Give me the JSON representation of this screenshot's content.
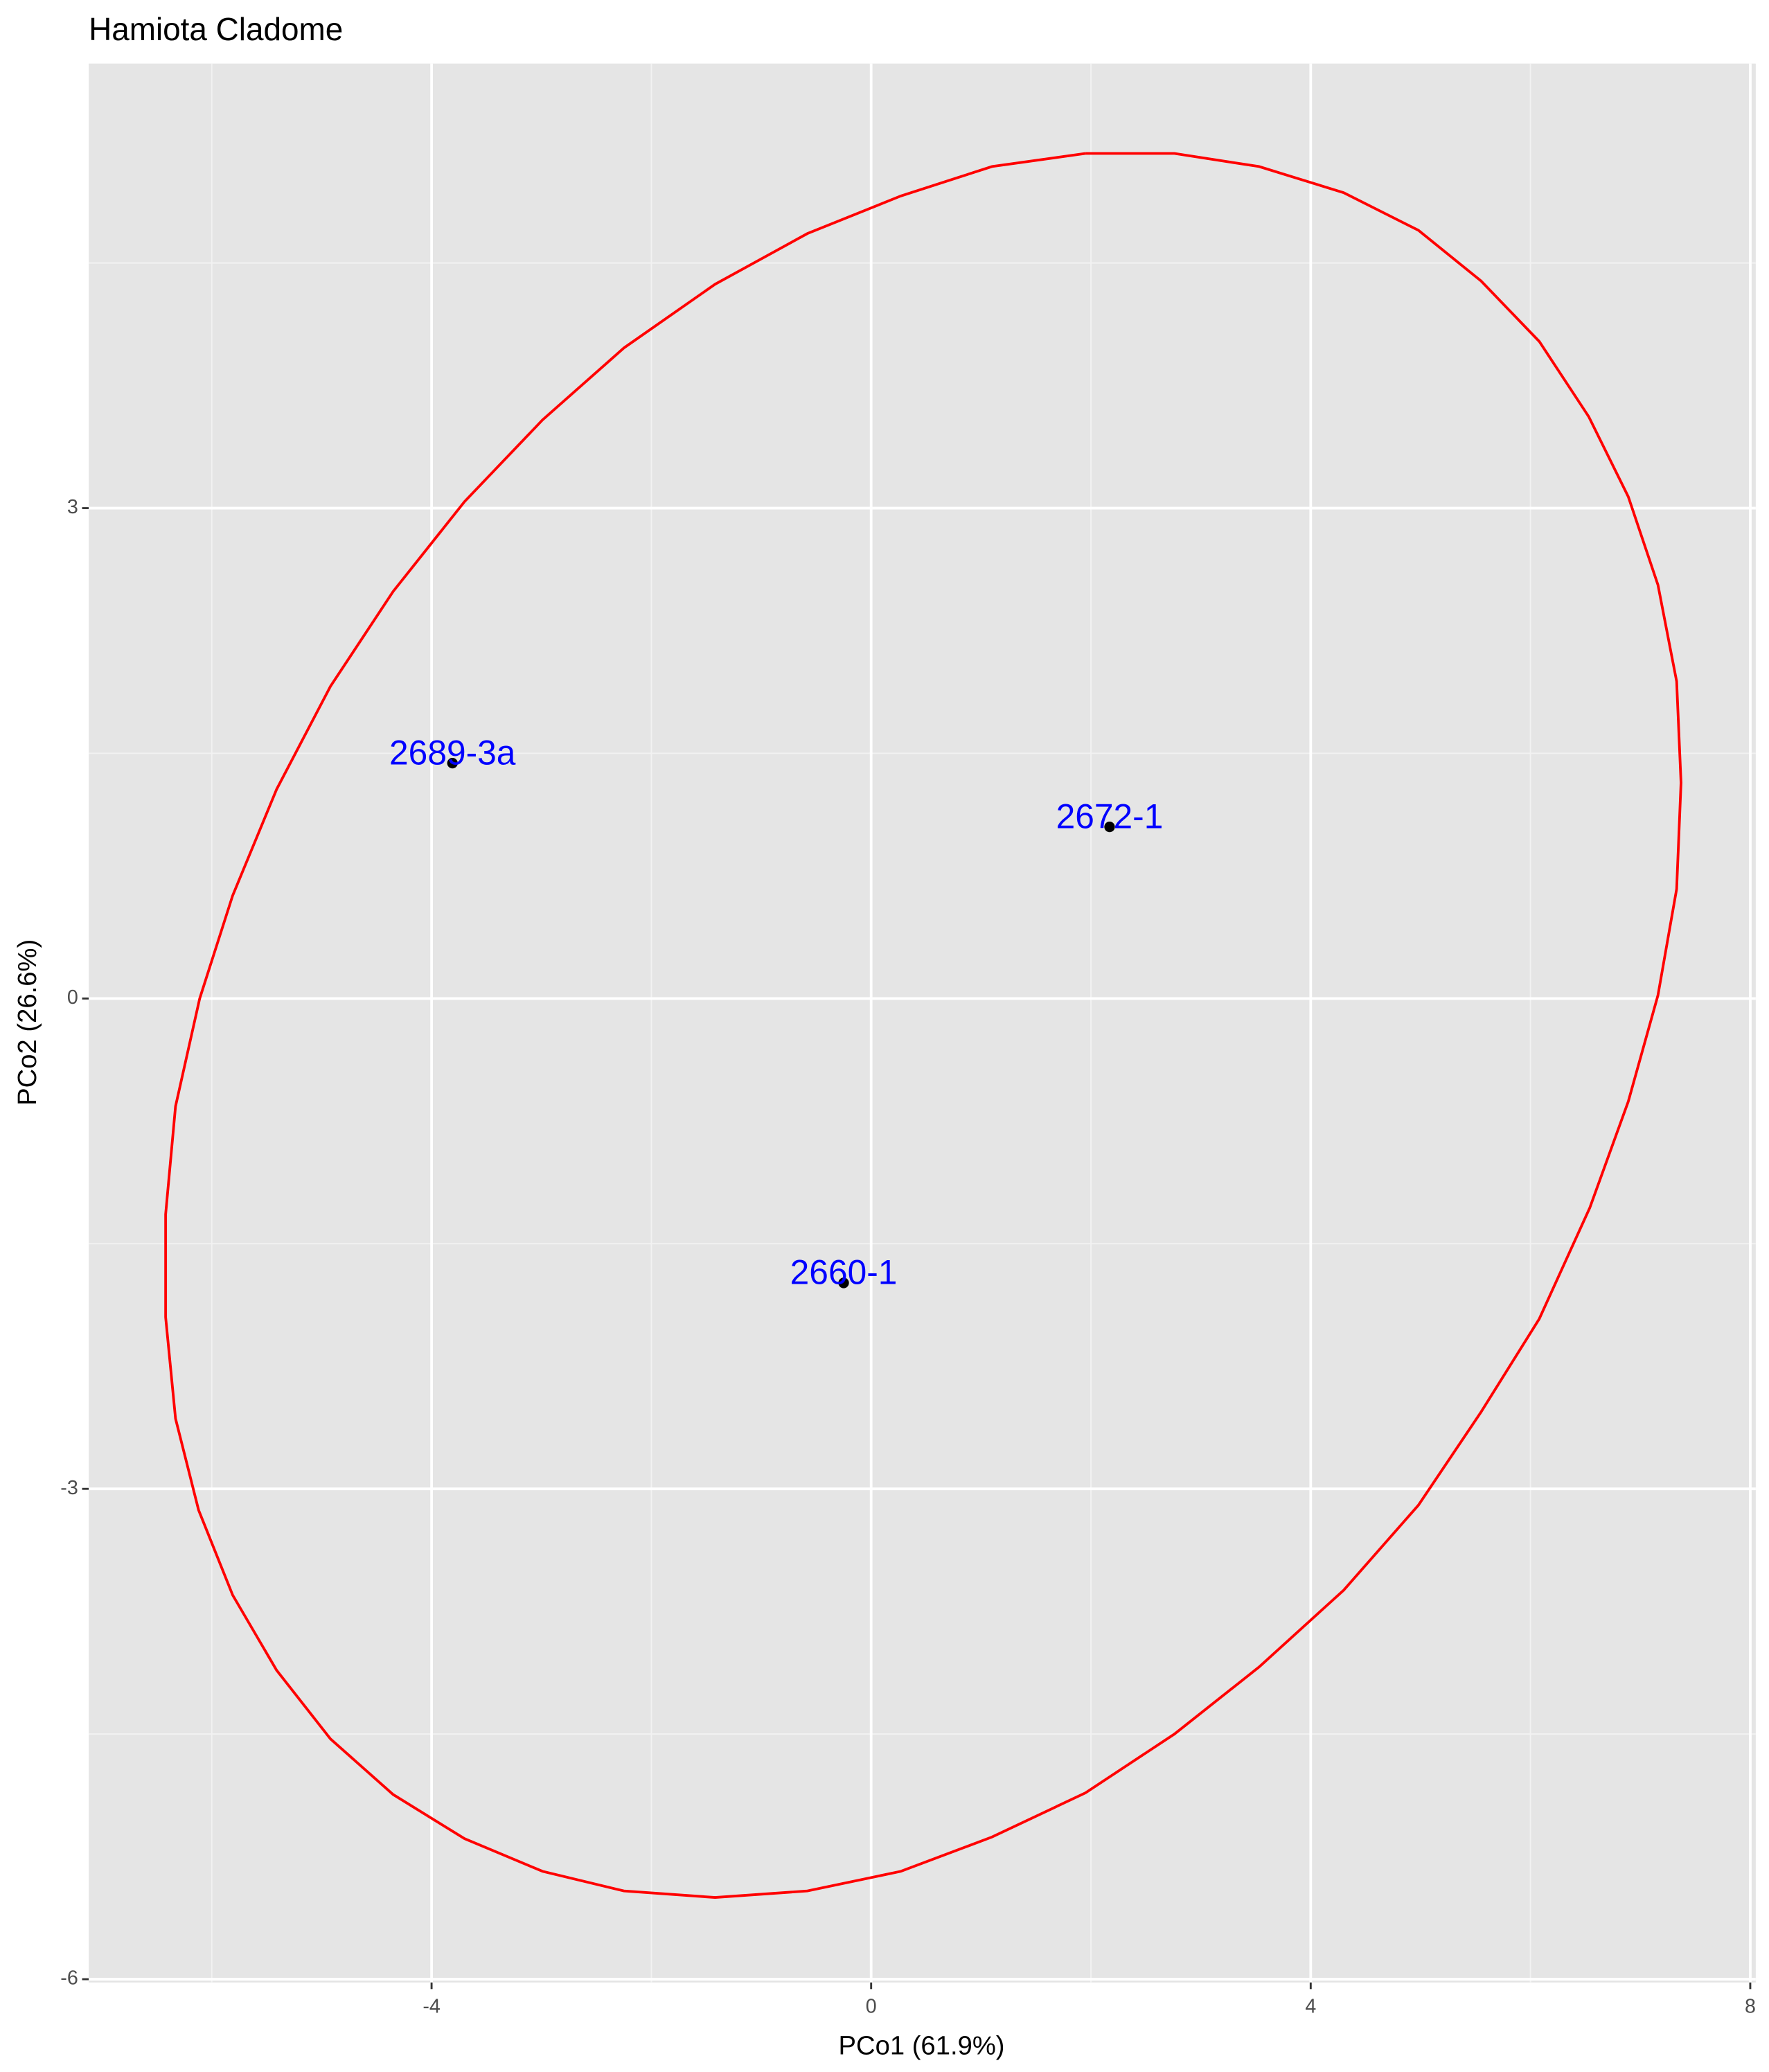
{
  "chart_data": {
    "type": "scatter",
    "title": "Hamiota Cladome",
    "xlabel": "PCo1 (61.9%)",
    "ylabel": "PCo2 (26.6%)",
    "xlim": [
      -7.12,
      8.05
    ],
    "ylim": [
      -6.02,
      5.72
    ],
    "xticks": [
      -4,
      0,
      4,
      8
    ],
    "yticks": [
      -6,
      -3,
      0,
      3
    ],
    "xminor": [
      -6,
      -2,
      2,
      6
    ],
    "yminor": [
      -4.5,
      -1.5,
      1.5,
      4.5
    ],
    "grid": true,
    "x": [
      -3.81,
      2.17,
      -0.25
    ],
    "y": [
      1.44,
      1.05,
      -1.74
    ],
    "labels": [
      "2689-3a",
      "2672-1",
      "2660-1"
    ],
    "color": "#000000",
    "label_color": "#0000ff",
    "ellipse": {
      "color": "#ff0000",
      "x": [
        1.95,
        2.76,
        3.53,
        4.3,
        4.98,
        5.55,
        6.08,
        6.53,
        6.89,
        7.16,
        7.33,
        7.37,
        7.33,
        7.16,
        6.89,
        6.54,
        6.08,
        5.55,
        4.98,
        4.3,
        3.53,
        2.76,
        1.95,
        1.1,
        0.27,
        -0.58,
        -1.42,
        -2.25,
        -2.99,
        -3.7,
        -4.35,
        -4.92,
        -5.41,
        -5.81,
        -6.12,
        -6.33,
        -6.42,
        -6.42,
        -6.33,
        -6.11,
        -5.81,
        -5.41,
        -4.92,
        -4.35,
        -3.7,
        -2.99,
        -2.25,
        -1.42,
        -0.58,
        0.27,
        1.1,
        1.95
      ],
      "y": [
        5.17,
        5.17,
        5.09,
        4.93,
        4.7,
        4.39,
        4.02,
        3.56,
        3.07,
        2.53,
        1.94,
        1.32,
        0.67,
        0.02,
        -0.63,
        -1.28,
        -1.96,
        -2.53,
        -3.1,
        -3.62,
        -4.09,
        -4.5,
        -4.86,
        -5.13,
        -5.34,
        -5.46,
        -5.5,
        -5.46,
        -5.34,
        -5.14,
        -4.87,
        -4.53,
        -4.11,
        -3.65,
        -3.13,
        -2.57,
        -1.95,
        -1.32,
        -0.66,
        0.0,
        0.63,
        1.28,
        1.91,
        2.49,
        3.04,
        3.54,
        3.98,
        4.37,
        4.68,
        4.91,
        5.09,
        5.17
      ]
    }
  }
}
